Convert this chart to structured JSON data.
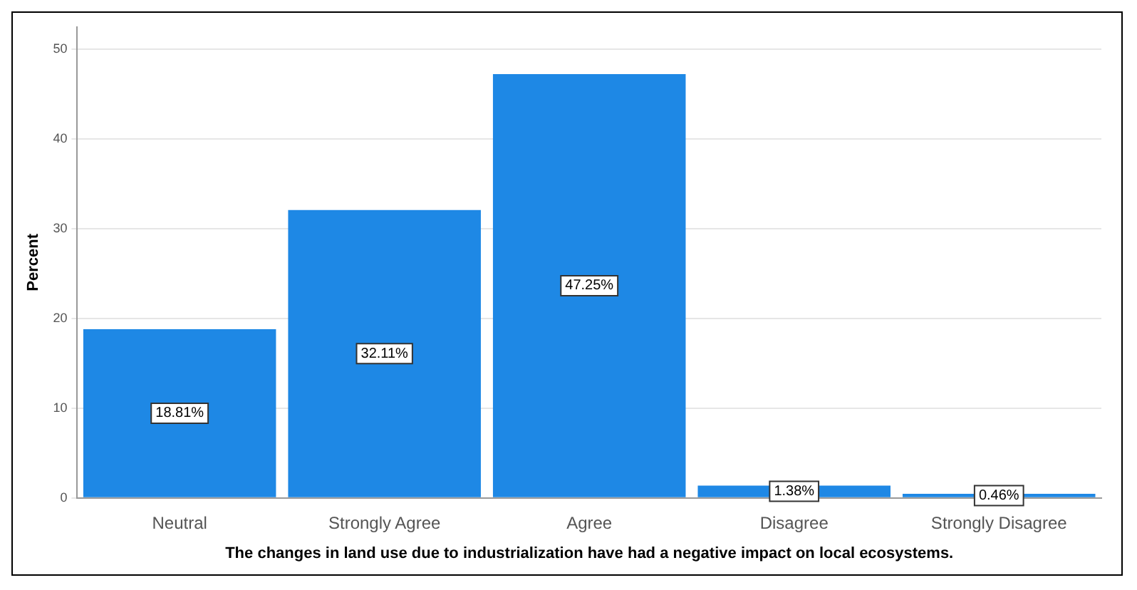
{
  "chart_data": {
    "type": "bar",
    "xlabel": "The changes in land use due to industrialization have had a negative impact on local ecosystems.",
    "ylabel": "Percent",
    "categories": [
      "Neutral",
      "Strongly Agree",
      "Agree",
      "Disagree",
      "Strongly Disagree"
    ],
    "values": [
      18.81,
      32.11,
      47.25,
      1.38,
      0.46
    ],
    "value_labels": [
      "18.81%",
      "32.11%",
      "47.25%",
      "1.38%",
      "0.46%"
    ],
    "color": "#1e88e5",
    "ylim": [
      0,
      52.5
    ],
    "yticks": [
      0,
      10,
      20,
      30,
      40,
      50
    ],
    "grid": "y",
    "legend": false
  }
}
